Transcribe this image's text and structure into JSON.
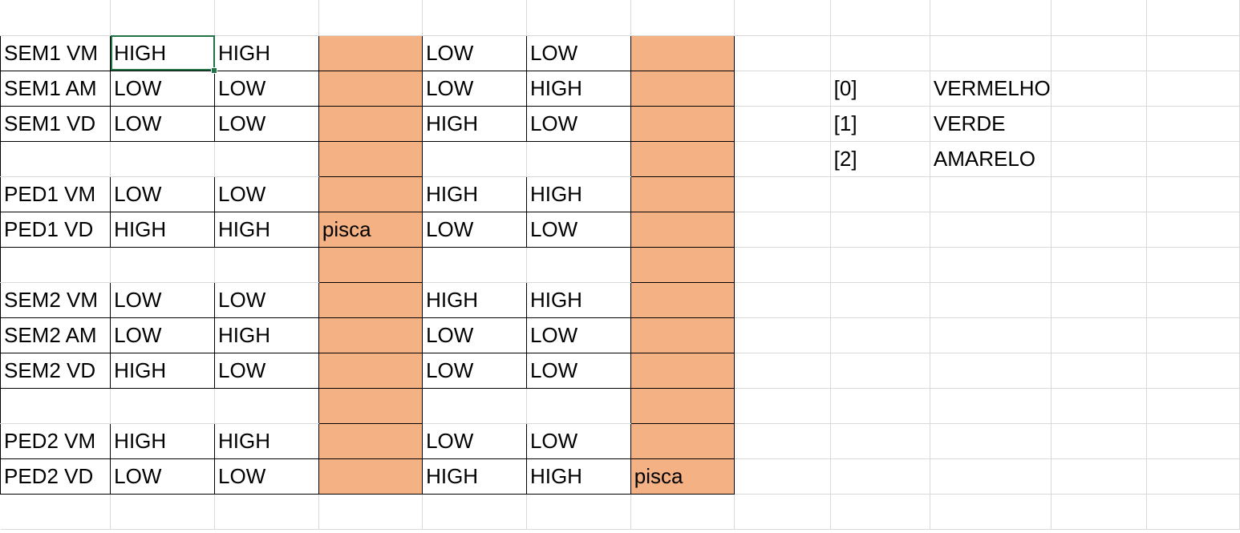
{
  "sheet": {
    "fill_color": "#f4b183",
    "active_cell_color": "#217346",
    "selected_cell": "B2",
    "rows": [
      [
        "",
        "",
        "",
        "",
        "",
        "",
        "",
        "",
        "",
        "",
        "",
        ""
      ],
      [
        "SEM1 VM",
        "HIGH",
        "HIGH",
        "",
        "LOW",
        "LOW",
        "",
        "",
        "",
        "",
        "",
        ""
      ],
      [
        "SEM1 AM",
        "LOW",
        "LOW",
        "",
        "LOW",
        "HIGH",
        "",
        "",
        "[0]",
        "VERMELHO",
        "",
        ""
      ],
      [
        "SEM1 VD",
        "LOW",
        "LOW",
        "",
        "HIGH",
        "LOW",
        "",
        "",
        "[1]",
        "VERDE",
        "",
        ""
      ],
      [
        "",
        "",
        "",
        "",
        "",
        "",
        "",
        "",
        "[2]",
        "AMARELO",
        "",
        ""
      ],
      [
        "PED1 VM",
        "LOW",
        "LOW",
        "",
        "HIGH",
        "HIGH",
        "",
        "",
        "",
        "",
        "",
        ""
      ],
      [
        "PED1 VD",
        "HIGH",
        "HIGH",
        "pisca",
        "LOW",
        "LOW",
        "",
        "",
        "",
        "",
        "",
        ""
      ],
      [
        "",
        "",
        "",
        "",
        "",
        "",
        "",
        "",
        "",
        "",
        "",
        ""
      ],
      [
        "SEM2 VM",
        "LOW",
        "LOW",
        "",
        "HIGH",
        "HIGH",
        "",
        "",
        "",
        "",
        "",
        ""
      ],
      [
        "SEM2 AM",
        "LOW",
        "HIGH",
        "",
        "LOW",
        "LOW",
        "",
        "",
        "",
        "",
        "",
        ""
      ],
      [
        "SEM2 VD",
        "HIGH",
        "LOW",
        "",
        "LOW",
        "LOW",
        "",
        "",
        "",
        "",
        "",
        ""
      ],
      [
        "",
        "",
        "",
        "",
        "",
        "",
        "",
        "",
        "",
        "",
        "",
        ""
      ],
      [
        "PED2 VM",
        "HIGH",
        "HIGH",
        "",
        "LOW",
        "LOW",
        "",
        "",
        "",
        "",
        "",
        ""
      ],
      [
        "PED2 VD",
        "LOW",
        "LOW",
        "",
        "HIGH",
        "HIGH",
        "pisca",
        "",
        "",
        "",
        "",
        ""
      ],
      [
        "",
        "",
        "",
        "",
        "",
        "",
        "",
        "",
        "",
        "",
        "",
        ""
      ]
    ]
  }
}
